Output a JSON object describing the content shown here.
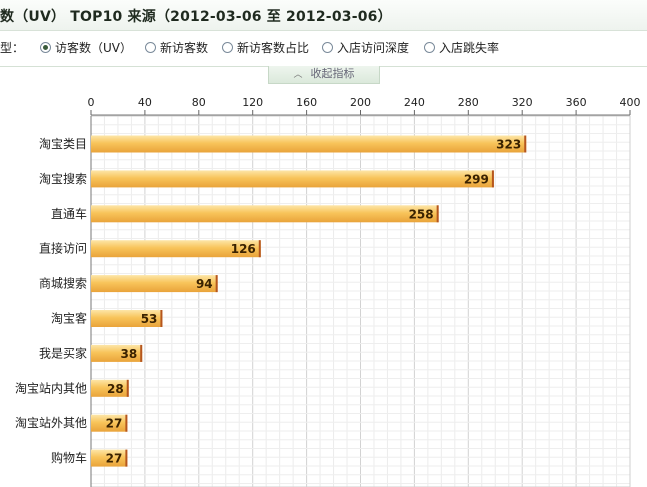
{
  "header": {
    "title": "数（UV） TOP10 来源（2012-03-06 至 2012-03-06）"
  },
  "type_selector": {
    "label": "型：",
    "options": [
      {
        "label": "访客数（UV）",
        "checked": true
      },
      {
        "label": "新访客数",
        "checked": false
      },
      {
        "label": "新访客数占比",
        "checked": false
      },
      {
        "label": "入店访问深度",
        "checked": false
      },
      {
        "label": "入店跳失率",
        "checked": false
      }
    ]
  },
  "collapse_button": {
    "label": "收起指标"
  },
  "chart_data": {
    "type": "bar",
    "orientation": "horizontal",
    "categories": [
      "淘宝类目",
      "淘宝搜索",
      "直通车",
      "直接访问",
      "商城搜索",
      "淘宝客",
      "我是买家",
      "淘宝站内其他",
      "淘宝站外其他",
      "购物车"
    ],
    "values": [
      323,
      299,
      258,
      126,
      94,
      53,
      38,
      28,
      27,
      27
    ],
    "xlim": [
      0,
      400
    ],
    "xticks": [
      0,
      40,
      80,
      120,
      160,
      200,
      240,
      280,
      320,
      360,
      400
    ],
    "grid": true,
    "bar_color": "#f5b94a"
  }
}
